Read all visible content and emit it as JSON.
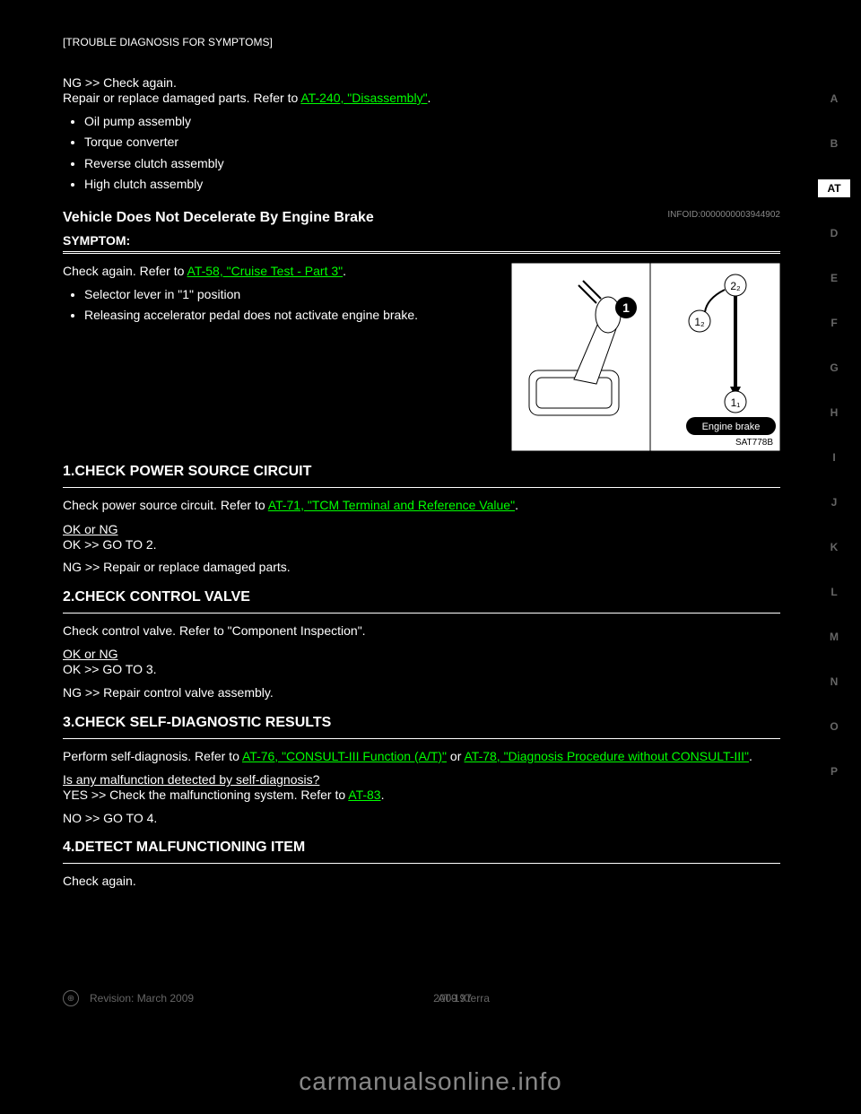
{
  "header": "[TROUBLE DIAGNOSIS FOR SYMPTOMS]",
  "tabs": [
    "A",
    "B",
    "AT",
    "D",
    "E",
    "F",
    "G",
    "H",
    "I",
    "J",
    "K",
    "L",
    "M",
    "N",
    "O",
    "P"
  ],
  "active_tab": 2,
  "s1": {
    "lead": "NG",
    "t1": "Check again.",
    "t2a": "Repair or replace damaged parts. Refer to ",
    "link1": "AT-240, \"Disassembly\"",
    "t2b": ".",
    "items": [
      "Oil pump assembly",
      "Torque converter",
      "Reverse clutch assembly",
      "High clutch assembly"
    ]
  },
  "h1": "Vehicle Does Not Decelerate By Engine Brake",
  "hcode": "INFOID:0000000003944902",
  "symptom": {
    "label": "SYMPTOM:",
    "lead": "Check again. Refer to ",
    "link": "AT-58, \"Cruise Test - Part 3\"",
    "tail": ".",
    "items": [
      "Selector lever in \"1\" position",
      "Releasing accelerator pedal does not activate engine brake."
    ]
  },
  "check1": {
    "title": "1.CHECK POWER SOURCE CIRCUIT",
    "t1a": "Check power source circuit. Refer to ",
    "link": "AT-71, \"TCM Terminal and Reference Value\"",
    "t1b": ".",
    "q": "OK or NG",
    "ok": "OK",
    "okgo": "GO TO 2.",
    "ng": "NG",
    "nggo": "Repair or replace damaged parts."
  },
  "check2": {
    "title": "2.CHECK CONTROL VALVE",
    "t1": "Check control valve. Refer to \"Component Inspection\".",
    "q": "OK or NG",
    "ok": "OK",
    "okgo": "GO TO 3.",
    "ng": "NG",
    "nggo": "Repair control valve assembly."
  },
  "check3": {
    "title": "3.CHECK SELF-DIAGNOSTIC RESULTS",
    "t1a": "Perform self-diagnosis. Refer to ",
    "link1": "AT-76, \"CONSULT-III Function (A/T)\"",
    "mid": " or ",
    "link2": "AT-78, \"Diagnosis Procedure without CONSULT-III\"",
    "t1b": ".",
    "q": "Is any malfunction detected by self-diagnosis?",
    "yes": "YES",
    "yesgo1": "Check the malfunctioning system. Refer to ",
    "yeslink": "AT-83",
    "yesgo2": ".",
    "no": "NO",
    "nogo": "GO TO 4."
  },
  "check4": {
    "title": "4.DETECT MALFUNCTIONING ITEM",
    "t1": "Check again."
  },
  "figlabel": "SAT778B",
  "footer": {
    "rev": "Revision: March 2009",
    "pg": "AT-197",
    "model": "2009 Xterra"
  },
  "watermark": "carmanualsonline.info",
  "engine_brake_label": "Engine brake",
  "badge1": "1",
  "badge21": "1₂",
  "badge22": "2₂",
  "badge11": "1₁",
  "colors": {
    "link": "#00ff00",
    "bg": "#000000",
    "text": "#ffffff"
  }
}
